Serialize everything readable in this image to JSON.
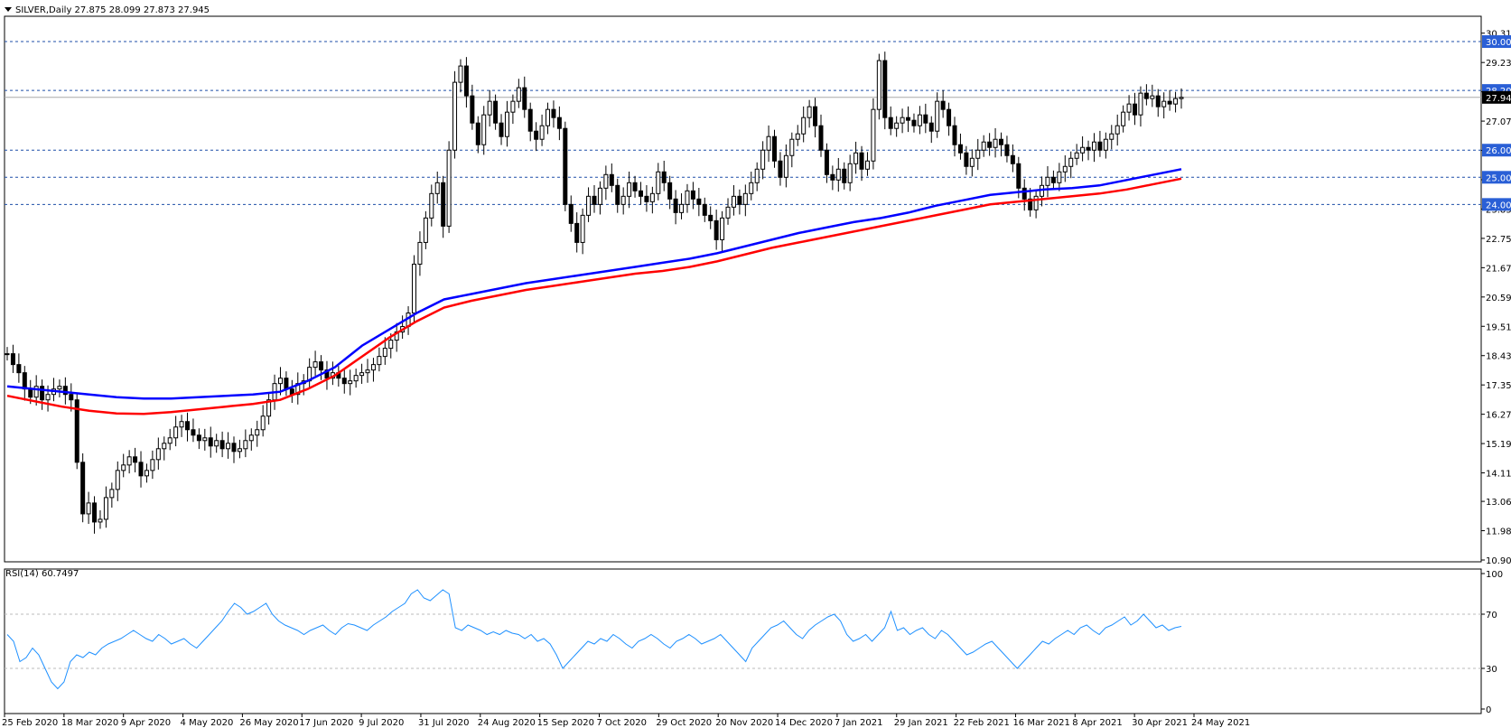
{
  "header": {
    "symbol_line": "SILVER,Daily  27.875 28.099 27.873 27.945"
  },
  "chart_data": [
    {
      "type": "candlestick",
      "title": "SILVER,Daily",
      "ohlc_last": {
        "open": 27.875,
        "high": 28.099,
        "low": 27.873,
        "close": 27.945
      },
      "y_ticks": [
        "30.310",
        "29.230",
        "28.150",
        "27.070",
        "25.990",
        "24.910",
        "23.830",
        "22.750",
        "21.670",
        "20.590",
        "19.510",
        "18.430",
        "17.350",
        "16.270",
        "15.190",
        "14.110",
        "13.060",
        "11.980",
        "10.900"
      ],
      "ylim": [
        10.9,
        30.8
      ],
      "x_ticks": [
        "25 Feb 2020",
        "18 Mar 2020",
        "9 Apr 2020",
        "4 May 2020",
        "26 May 2020",
        "17 Jun 2020",
        "9 Jul 2020",
        "31 Jul 2020",
        "24 Aug 2020",
        "15 Sep 2020",
        "7 Oct 2020",
        "29 Oct 2020",
        "20 Nov 2020",
        "14 Dec 2020",
        "7 Jan 2021",
        "29 Jan 2021",
        "22 Feb 2021",
        "16 Mar 2021",
        "8 Apr 2021",
        "30 Apr 2021",
        "24 May 2021"
      ],
      "horizontal_levels": [
        {
          "value": 30.0,
          "label": "30.000"
        },
        {
          "value": 28.2,
          "label": "28.200"
        },
        {
          "value": 26.0,
          "label": "26.000"
        },
        {
          "value": 25.0,
          "label": "25.000"
        },
        {
          "value": 24.0,
          "label": "24.000"
        }
      ],
      "current_price": {
        "value": 27.945,
        "label": "27.945"
      },
      "close_series": [
        18.5,
        18.1,
        17.8,
        17.2,
        16.9,
        17.3,
        16.8,
        17.0,
        17.2,
        17.3,
        17.0,
        16.8,
        14.5,
        12.6,
        13.0,
        12.3,
        12.4,
        13.2,
        13.5,
        14.2,
        14.4,
        14.7,
        14.5,
        14.0,
        14.2,
        14.6,
        15.0,
        15.2,
        15.4,
        15.8,
        16.0,
        15.7,
        15.5,
        15.3,
        15.4,
        15.1,
        15.3,
        15.0,
        15.2,
        14.9,
        15.0,
        15.3,
        15.5,
        15.7,
        16.2,
        16.8,
        17.4,
        17.6,
        17.2,
        17.0,
        17.4,
        17.5,
        18.0,
        18.2,
        17.9,
        17.6,
        17.8,
        17.6,
        17.4,
        17.5,
        17.7,
        17.8,
        17.9,
        18.1,
        18.4,
        18.7,
        19.0,
        19.3,
        19.5,
        20.0,
        21.8,
        22.6,
        23.5,
        24.4,
        24.8,
        23.2,
        26.0,
        28.5,
        29.1,
        28.0,
        27.0,
        26.2,
        27.3,
        27.8,
        27.0,
        26.5,
        27.4,
        27.8,
        28.3,
        27.5,
        26.7,
        26.4,
        26.9,
        27.5,
        27.2,
        26.8,
        24.0,
        23.3,
        22.6,
        23.6,
        24.3,
        24.0,
        24.6,
        25.1,
        24.7,
        24.0,
        24.3,
        24.8,
        24.5,
        24.3,
        24.1,
        24.4,
        25.2,
        24.8,
        24.2,
        23.7,
        24.0,
        24.5,
        24.2,
        24.0,
        23.6,
        23.4,
        22.7,
        23.5,
        23.9,
        24.3,
        24.0,
        24.4,
        24.8,
        25.3,
        26.0,
        26.5,
        25.6,
        25.0,
        25.8,
        26.4,
        26.6,
        27.2,
        27.6,
        26.9,
        26.0,
        25.1,
        24.9,
        25.3,
        24.8,
        25.5,
        25.9,
        25.3,
        25.6,
        27.5,
        29.3,
        27.2,
        26.8,
        27.0,
        27.2,
        27.1,
        26.9,
        27.3,
        27.0,
        26.7,
        27.8,
        27.5,
        26.9,
        26.2,
        25.9,
        25.4,
        25.7,
        26.0,
        26.3,
        26.1,
        26.4,
        26.2,
        25.8,
        25.5,
        24.6,
        24.2,
        23.8,
        24.3,
        24.7,
        25.0,
        24.8,
        25.2,
        25.4,
        25.7,
        25.9,
        26.1,
        26.0,
        26.3,
        26.0,
        26.4,
        26.6,
        26.9,
        27.4,
        27.7,
        27.3,
        28.1,
        27.9,
        28.0,
        27.6,
        27.8,
        27.7,
        27.9,
        27.945
      ],
      "series": [
        {
          "name": "",
          "color": "#0000ff",
          "type": "line"
        },
        {
          "name": "",
          "color": "#ff0000",
          "type": "line"
        }
      ],
      "ma_blue": [
        17.3,
        17.2,
        17.1,
        17.0,
        16.9,
        16.85,
        16.85,
        16.9,
        16.95,
        17.0,
        17.1,
        17.5,
        18.0,
        18.8,
        19.4,
        20.0,
        20.5,
        20.7,
        20.9,
        21.1,
        21.25,
        21.4,
        21.55,
        21.7,
        21.85,
        22.0,
        22.2,
        22.45,
        22.7,
        22.95,
        23.15,
        23.35,
        23.5,
        23.7,
        23.95,
        24.15,
        24.35,
        24.45,
        24.55,
        24.6,
        24.7,
        24.9,
        25.1,
        25.3
      ],
      "ma_red": [
        16.95,
        16.75,
        16.55,
        16.4,
        16.3,
        16.28,
        16.35,
        16.45,
        16.55,
        16.65,
        16.8,
        17.2,
        17.7,
        18.4,
        19.1,
        19.7,
        20.2,
        20.45,
        20.65,
        20.85,
        21.0,
        21.15,
        21.3,
        21.45,
        21.55,
        21.7,
        21.9,
        22.15,
        22.4,
        22.6,
        22.8,
        23.0,
        23.2,
        23.4,
        23.6,
        23.8,
        24.0,
        24.1,
        24.2,
        24.3,
        24.4,
        24.55,
        24.75,
        24.95
      ]
    },
    {
      "type": "line",
      "title": "RSI(14) 60.7497",
      "color": "#1e90ff",
      "y_ticks": [
        "100",
        "70",
        "30",
        "0"
      ],
      "ylim": [
        0,
        100
      ],
      "levels": [
        70,
        30
      ],
      "values": [
        55,
        50,
        35,
        38,
        45,
        40,
        30,
        20,
        15,
        20,
        35,
        40,
        38,
        42,
        40,
        45,
        48,
        50,
        52,
        55,
        58,
        55,
        52,
        50,
        55,
        52,
        48,
        50,
        52,
        48,
        45,
        50,
        55,
        60,
        65,
        72,
        78,
        75,
        70,
        72,
        75,
        78,
        70,
        65,
        62,
        60,
        58,
        55,
        58,
        60,
        62,
        58,
        55,
        60,
        63,
        62,
        60,
        58,
        62,
        65,
        68,
        72,
        75,
        78,
        85,
        88,
        82,
        80,
        84,
        88,
        85,
        60,
        58,
        62,
        60,
        58,
        55,
        57,
        55,
        58,
        56,
        55,
        52,
        55,
        50,
        52,
        48,
        40,
        30,
        35,
        40,
        45,
        50,
        48,
        52,
        50,
        55,
        52,
        48,
        45,
        50,
        52,
        55,
        52,
        48,
        45,
        50,
        52,
        55,
        52,
        48,
        50,
        52,
        55,
        50,
        45,
        40,
        35,
        45,
        50,
        55,
        60,
        62,
        65,
        60,
        55,
        52,
        58,
        62,
        65,
        68,
        70,
        65,
        55,
        50,
        52,
        55,
        50,
        55,
        60,
        72,
        58,
        60,
        55,
        58,
        60,
        55,
        52,
        58,
        55,
        50,
        45,
        40,
        42,
        45,
        48,
        50,
        45,
        40,
        35,
        30,
        35,
        40,
        45,
        50,
        48,
        52,
        55,
        58,
        55,
        60,
        62,
        58,
        55,
        60,
        62,
        65,
        68,
        62,
        65,
        70,
        65,
        60,
        62,
        58,
        60,
        61
      ]
    }
  ]
}
